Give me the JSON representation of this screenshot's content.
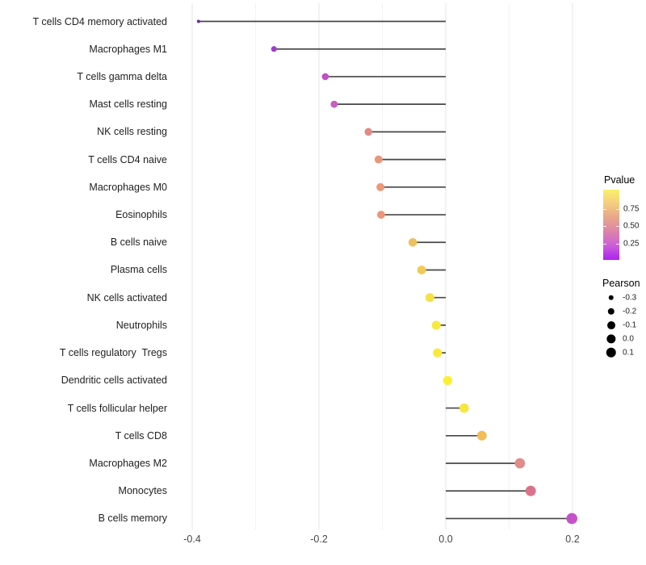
{
  "chart_data": {
    "type": "lollipop",
    "orientation": "horizontal",
    "title": "",
    "xlabel": "",
    "ylabel": "",
    "x_tick_labels": [
      "-0.4",
      "-0.2",
      "0.0",
      "0.2"
    ],
    "x_ticks": [
      -0.4,
      -0.2,
      0.0,
      0.2
    ],
    "x_minor_ticks": [
      -0.3,
      -0.1,
      0.1
    ],
    "xlim": [
      -0.425,
      0.235
    ],
    "grid": "major and minor vertical gridlines, light gray, no axis lines",
    "baseline": 0.0,
    "rows": [
      {
        "label": "T cells CD4 memory activated",
        "pearson": -0.39,
        "pvalue_approx": 0.01,
        "color": "#7127AE"
      },
      {
        "label": "Macrophages M1",
        "pearson": -0.271,
        "pvalue_approx": 0.13,
        "color": "#A23CCB"
      },
      {
        "label": "T cells gamma delta",
        "pearson": -0.19,
        "pvalue_approx": 0.22,
        "color": "#C250C4"
      },
      {
        "label": "Mast cells resting",
        "pearson": -0.176,
        "pvalue_approx": 0.25,
        "color": "#C95DC2"
      },
      {
        "label": "NK cells resting",
        "pearson": -0.122,
        "pvalue_approx": 0.44,
        "color": "#E18B85"
      },
      {
        "label": "T cells CD4 naive",
        "pearson": -0.106,
        "pvalue_approx": 0.5,
        "color": "#EB9579"
      },
      {
        "label": "Macrophages M0",
        "pearson": -0.103,
        "pvalue_approx": 0.51,
        "color": "#EC9779"
      },
      {
        "label": "Eosinophils",
        "pearson": -0.102,
        "pvalue_approx": 0.51,
        "color": "#EC9779"
      },
      {
        "label": "B cells naive",
        "pearson": -0.052,
        "pvalue_approx": 0.72,
        "color": "#EDC25E"
      },
      {
        "label": "Plasma cells",
        "pearson": -0.038,
        "pvalue_approx": 0.77,
        "color": "#F0CA55"
      },
      {
        "label": "NK cells activated",
        "pearson": -0.025,
        "pvalue_approx": 0.86,
        "color": "#F5E046"
      },
      {
        "label": "Neutrophils",
        "pearson": -0.015,
        "pvalue_approx": 0.91,
        "color": "#F8E93D"
      },
      {
        "label": "T cells regulatory  Tregs",
        "pearson": -0.013,
        "pvalue_approx": 0.91,
        "color": "#F8EA3C"
      },
      {
        "label": "Dendritic cells activated",
        "pearson": 0.003,
        "pvalue_approx": 0.96,
        "color": "#FBF130"
      },
      {
        "label": "T cells follicular helper",
        "pearson": 0.029,
        "pvalue_approx": 0.89,
        "color": "#F7E63F"
      },
      {
        "label": "T cells CD8",
        "pearson": 0.057,
        "pvalue_approx": 0.7,
        "color": "#F0BD59"
      },
      {
        "label": "Macrophages M2",
        "pearson": 0.117,
        "pvalue_approx": 0.44,
        "color": "#E28B8B"
      },
      {
        "label": "Monocytes",
        "pearson": 0.134,
        "pvalue_approx": 0.36,
        "color": "#DA7389"
      },
      {
        "label": "B cells memory",
        "pearson": 0.199,
        "pvalue_approx": 0.23,
        "color": "#C751C9"
      }
    ],
    "stem_color": "#474747",
    "legend_position": "right"
  },
  "legends": {
    "pvalue": {
      "title": "Pvalue",
      "tick_labels": [
        "0.75",
        "0.50",
        "0.25"
      ],
      "tick_values": [
        0.75,
        0.5,
        0.25
      ],
      "gradient_top_to_bottom": [
        "#FAF169",
        "#F3CD80",
        "#E8A58C",
        "#DC83AC",
        "#CB5ED8",
        "#AB22F4"
      ]
    },
    "pearson": {
      "title": "Pearson",
      "items": [
        {
          "label": "-0.3",
          "value": -0.3
        },
        {
          "label": "-0.2",
          "value": -0.2
        },
        {
          "label": "-0.1",
          "value": -0.1
        },
        {
          "label": "0.0",
          "value": 0.0
        },
        {
          "label": "0.1",
          "value": 0.1
        }
      ]
    }
  }
}
